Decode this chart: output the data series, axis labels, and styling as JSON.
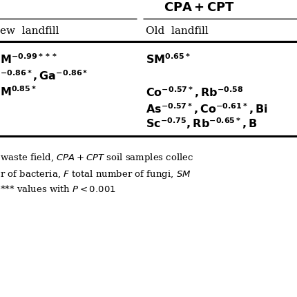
{
  "title": "CPA + CPT",
  "col1_header": "ew landfill",
  "col2_header": "Old  landfill",
  "r1c1": "M",
  "r1c1_sup": "-0.99***",
  "r1c2": "SM",
  "r1c2_sup": "0.65*",
  "r2c1_pre_sup": "-0.86*",
  "r2c1_main": ",Ga",
  "r2c1_main_sup": "-0.86*",
  "r3c1": "M",
  "r3c1_sup": "0.85*",
  "r3c2_main": "Co",
  "r3c2_sup1": "-0.57*",
  "r3c2_mid": ",Rb",
  "r3c2_sup2": "-0.58",
  "r4c2_main": "As",
  "r4c2_sup1": "-0.57*",
  "r4c2_mid": ",Co",
  "r4c2_sup2": "-0.61*",
  "r4c2_end": ",Bi",
  "r5c2_main": "Sc",
  "r5c2_sup1": "-0.75",
  "r5c2_mid": ",Rb",
  "r5c2_sup2": "-0.65*",
  "r5c2_end": ",B",
  "footer1": "waste field, ",
  "footer1_it": "CPA+CPT",
  "footer1_rest": " soil samples collec",
  "footer2_pre": "r of bacteria, ",
  "footer2_it1": "F",
  "footer2_mid": " total number of fungi, ",
  "footer2_it2": "SM",
  "footer3_pre": "*** values with ",
  "footer3_it": "P",
  "footer3_rest": " < 0.001",
  "bg_color": "#ffffff",
  "text_color": "#000000",
  "col_split": 0.47,
  "figw": 4.31,
  "figh": 4.31,
  "dpi": 100
}
